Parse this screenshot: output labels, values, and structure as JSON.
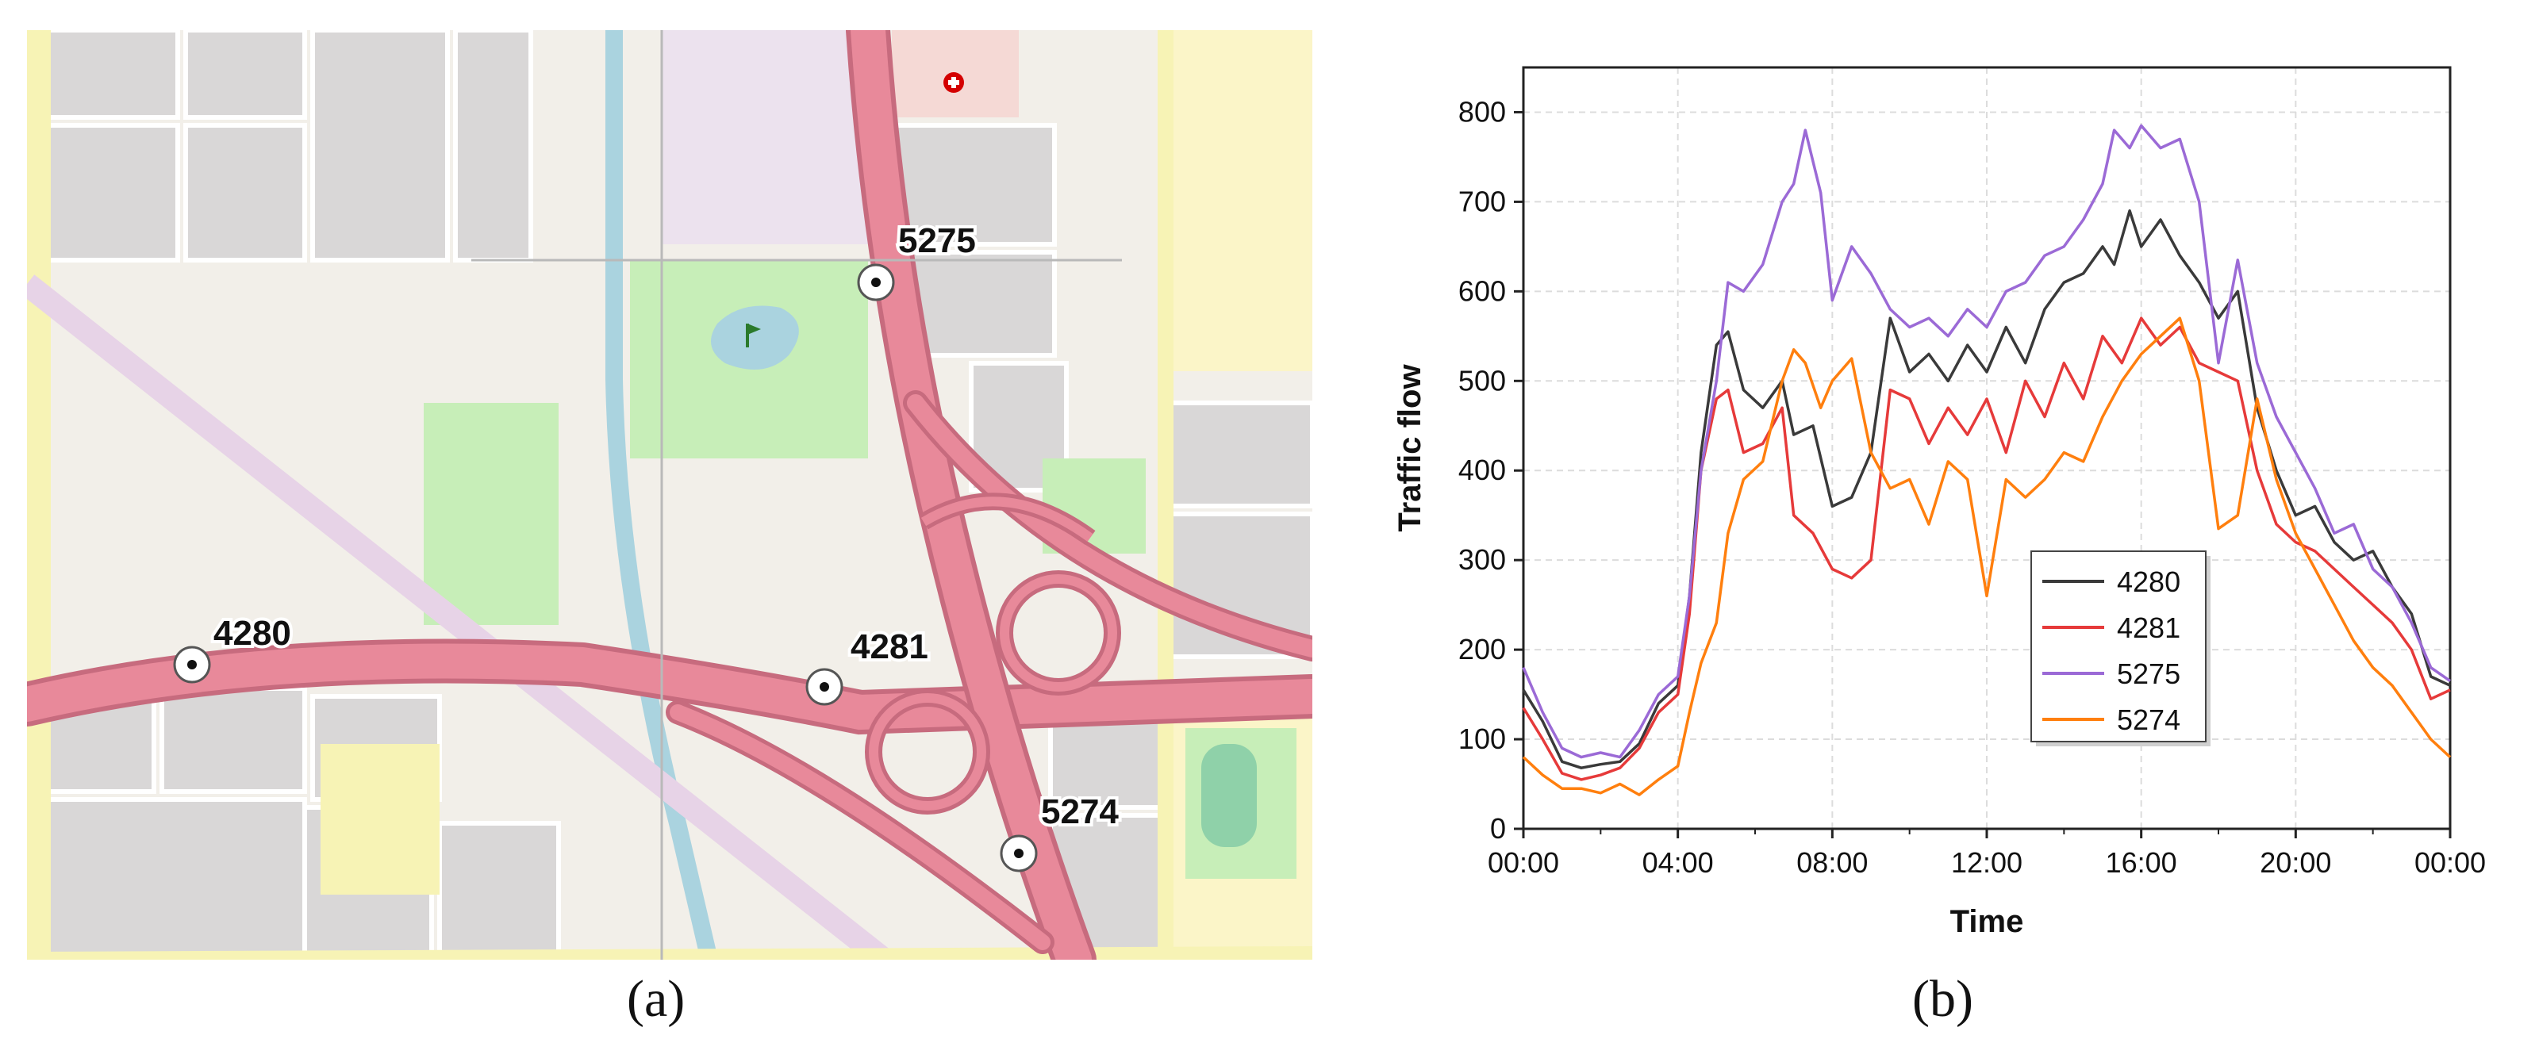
{
  "captions": {
    "a": "(a)",
    "b": "(b)"
  },
  "map": {
    "stations": [
      {
        "id": "4280"
      },
      {
        "id": "4281"
      },
      {
        "id": "5275"
      },
      {
        "id": "5274"
      }
    ],
    "colors": {
      "land": "#f2efe9",
      "block": "#d9d7d7",
      "road_main": "#e8899a",
      "road_edge": "#c76b7e",
      "yellow_road": "#f7f3b5",
      "park": "#c7eeb8",
      "water": "#aad3df",
      "plaza": "#ece2ee",
      "hospital_area": "#f5d9d5"
    },
    "icons": [
      "station-marker-icon",
      "hospital-icon",
      "golf-flag-icon"
    ]
  },
  "chart_data": {
    "type": "line",
    "xlabel": "Time",
    "ylabel": "Traffic flow",
    "ylim": [
      0,
      850
    ],
    "yticks": [
      0,
      100,
      200,
      300,
      400,
      500,
      600,
      700,
      800
    ],
    "xlim": [
      0,
      24
    ],
    "xticks": [
      "00:00",
      "04:00",
      "08:00",
      "12:00",
      "16:00",
      "20:00",
      "00:00"
    ],
    "xtick_hours": [
      0,
      4,
      8,
      12,
      16,
      20,
      24
    ],
    "grid": true,
    "legend_position": "bottom-center",
    "x_unit": "hours",
    "series": [
      {
        "name": "4280",
        "color": "#3a3a3a",
        "points": [
          [
            0,
            155
          ],
          [
            0.5,
            120
          ],
          [
            1,
            75
          ],
          [
            1.5,
            68
          ],
          [
            2,
            72
          ],
          [
            2.5,
            75
          ],
          [
            3,
            95
          ],
          [
            3.5,
            140
          ],
          [
            4,
            160
          ],
          [
            4.3,
            260
          ],
          [
            4.6,
            420
          ],
          [
            5,
            540
          ],
          [
            5.3,
            555
          ],
          [
            5.7,
            490
          ],
          [
            6.2,
            470
          ],
          [
            6.7,
            500
          ],
          [
            7,
            440
          ],
          [
            7.5,
            450
          ],
          [
            8,
            360
          ],
          [
            8.5,
            370
          ],
          [
            9,
            420
          ],
          [
            9.5,
            570
          ],
          [
            10,
            510
          ],
          [
            10.5,
            530
          ],
          [
            11,
            500
          ],
          [
            11.5,
            540
          ],
          [
            12,
            510
          ],
          [
            12.5,
            560
          ],
          [
            13,
            520
          ],
          [
            13.5,
            580
          ],
          [
            14,
            610
          ],
          [
            14.5,
            620
          ],
          [
            15,
            650
          ],
          [
            15.3,
            630
          ],
          [
            15.7,
            690
          ],
          [
            16,
            650
          ],
          [
            16.5,
            680
          ],
          [
            17,
            640
          ],
          [
            17.5,
            610
          ],
          [
            18,
            570
          ],
          [
            18.5,
            600
          ],
          [
            19,
            470
          ],
          [
            19.5,
            400
          ],
          [
            20,
            350
          ],
          [
            20.5,
            360
          ],
          [
            21,
            320
          ],
          [
            21.5,
            300
          ],
          [
            22,
            310
          ],
          [
            22.5,
            270
          ],
          [
            23,
            240
          ],
          [
            23.5,
            170
          ],
          [
            24,
            160
          ]
        ]
      },
      {
        "name": "4281",
        "color": "#e63a3a",
        "points": [
          [
            0,
            135
          ],
          [
            0.5,
            100
          ],
          [
            1,
            62
          ],
          [
            1.5,
            55
          ],
          [
            2,
            60
          ],
          [
            2.5,
            68
          ],
          [
            3,
            90
          ],
          [
            3.5,
            130
          ],
          [
            4,
            150
          ],
          [
            4.3,
            240
          ],
          [
            4.6,
            400
          ],
          [
            5,
            480
          ],
          [
            5.3,
            490
          ],
          [
            5.7,
            420
          ],
          [
            6.2,
            430
          ],
          [
            6.7,
            470
          ],
          [
            7,
            350
          ],
          [
            7.5,
            330
          ],
          [
            8,
            290
          ],
          [
            8.5,
            280
          ],
          [
            9,
            300
          ],
          [
            9.5,
            490
          ],
          [
            10,
            480
          ],
          [
            10.5,
            430
          ],
          [
            11,
            470
          ],
          [
            11.5,
            440
          ],
          [
            12,
            480
          ],
          [
            12.5,
            420
          ],
          [
            13,
            500
          ],
          [
            13.5,
            460
          ],
          [
            14,
            520
          ],
          [
            14.5,
            480
          ],
          [
            15,
            550
          ],
          [
            15.5,
            520
          ],
          [
            16,
            570
          ],
          [
            16.5,
            540
          ],
          [
            17,
            560
          ],
          [
            17.5,
            520
          ],
          [
            18,
            510
          ],
          [
            18.5,
            500
          ],
          [
            19,
            400
          ],
          [
            19.5,
            340
          ],
          [
            20,
            320
          ],
          [
            20.5,
            310
          ],
          [
            21,
            290
          ],
          [
            21.5,
            270
          ],
          [
            22,
            250
          ],
          [
            22.5,
            230
          ],
          [
            23,
            200
          ],
          [
            23.5,
            145
          ],
          [
            24,
            155
          ]
        ]
      },
      {
        "name": "5275",
        "color": "#9b6ad6",
        "points": [
          [
            0,
            180
          ],
          [
            0.5,
            130
          ],
          [
            1,
            90
          ],
          [
            1.5,
            80
          ],
          [
            2,
            85
          ],
          [
            2.5,
            80
          ],
          [
            3,
            110
          ],
          [
            3.5,
            150
          ],
          [
            4,
            170
          ],
          [
            4.3,
            260
          ],
          [
            4.6,
            400
          ],
          [
            5,
            500
          ],
          [
            5.3,
            610
          ],
          [
            5.7,
            600
          ],
          [
            6.2,
            630
          ],
          [
            6.7,
            700
          ],
          [
            7,
            720
          ],
          [
            7.3,
            780
          ],
          [
            7.7,
            710
          ],
          [
            8,
            590
          ],
          [
            8.5,
            650
          ],
          [
            9,
            620
          ],
          [
            9.5,
            580
          ],
          [
            10,
            560
          ],
          [
            10.5,
            570
          ],
          [
            11,
            550
          ],
          [
            11.5,
            580
          ],
          [
            12,
            560
          ],
          [
            12.5,
            600
          ],
          [
            13,
            610
          ],
          [
            13.5,
            640
          ],
          [
            14,
            650
          ],
          [
            14.5,
            680
          ],
          [
            15,
            720
          ],
          [
            15.3,
            780
          ],
          [
            15.7,
            760
          ],
          [
            16,
            785
          ],
          [
            16.5,
            760
          ],
          [
            17,
            770
          ],
          [
            17.5,
            700
          ],
          [
            18,
            520
          ],
          [
            18.5,
            635
          ],
          [
            19,
            520
          ],
          [
            19.5,
            460
          ],
          [
            20,
            420
          ],
          [
            20.5,
            380
          ],
          [
            21,
            330
          ],
          [
            21.5,
            340
          ],
          [
            22,
            290
          ],
          [
            22.5,
            270
          ],
          [
            23,
            230
          ],
          [
            23.5,
            180
          ],
          [
            24,
            165
          ]
        ]
      },
      {
        "name": "5274",
        "color": "#ff7f0e",
        "points": [
          [
            0,
            80
          ],
          [
            0.5,
            60
          ],
          [
            1,
            45
          ],
          [
            1.5,
            45
          ],
          [
            2,
            40
          ],
          [
            2.5,
            50
          ],
          [
            3,
            38
          ],
          [
            3.5,
            55
          ],
          [
            4,
            70
          ],
          [
            4.3,
            130
          ],
          [
            4.6,
            185
          ],
          [
            5,
            230
          ],
          [
            5.3,
            330
          ],
          [
            5.7,
            390
          ],
          [
            6.2,
            410
          ],
          [
            6.7,
            500
          ],
          [
            7,
            535
          ],
          [
            7.3,
            520
          ],
          [
            7.7,
            470
          ],
          [
            8,
            500
          ],
          [
            8.5,
            525
          ],
          [
            9,
            420
          ],
          [
            9.5,
            380
          ],
          [
            10,
            390
          ],
          [
            10.5,
            340
          ],
          [
            11,
            410
          ],
          [
            11.5,
            390
          ],
          [
            12,
            260
          ],
          [
            12.5,
            390
          ],
          [
            13,
            370
          ],
          [
            13.5,
            390
          ],
          [
            14,
            420
          ],
          [
            14.5,
            410
          ],
          [
            15,
            460
          ],
          [
            15.5,
            500
          ],
          [
            16,
            530
          ],
          [
            16.5,
            550
          ],
          [
            17,
            570
          ],
          [
            17.5,
            500
          ],
          [
            18,
            335
          ],
          [
            18.5,
            350
          ],
          [
            19,
            480
          ],
          [
            19.5,
            390
          ],
          [
            20,
            330
          ],
          [
            20.5,
            290
          ],
          [
            21,
            250
          ],
          [
            21.5,
            210
          ],
          [
            22,
            180
          ],
          [
            22.5,
            160
          ],
          [
            23,
            130
          ],
          [
            23.5,
            100
          ],
          [
            24,
            80
          ]
        ]
      }
    ]
  }
}
